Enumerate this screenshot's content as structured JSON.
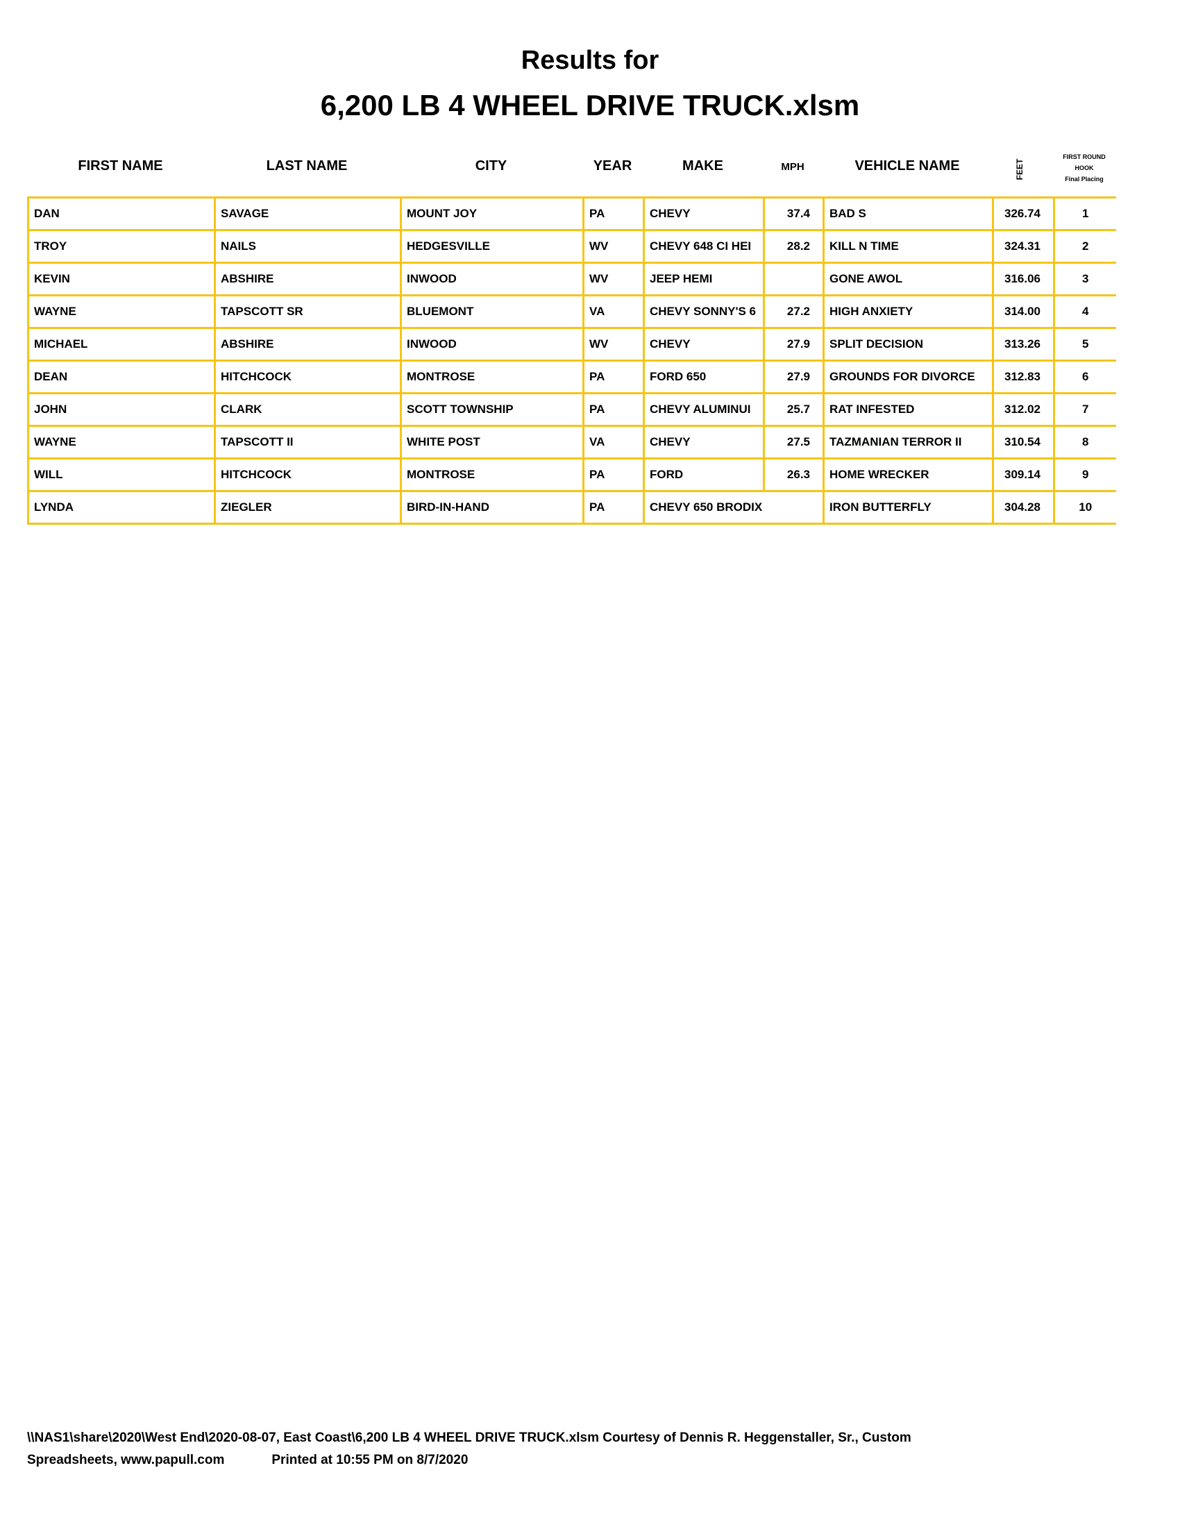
{
  "title": {
    "line1": "Results for",
    "line2": "6,200 LB 4 WHEEL DRIVE TRUCK.xlsm"
  },
  "headers": {
    "first": "FIRST NAME",
    "last": "LAST NAME",
    "city": "CITY",
    "year": "YEAR",
    "make": "MAKE",
    "mph": "MPH",
    "vehicle": "VEHICLE NAME",
    "feet": "FEET",
    "hook1": "FIRST ROUND",
    "hook2": "HOOK",
    "hook3": "Final Placing"
  },
  "border_color": "#f5c518",
  "rows": [
    [
      "DAN",
      "SAVAGE",
      "MOUNT JOY",
      "PA",
      "CHEVY",
      "37.4",
      "BAD S",
      "326.74",
      "1"
    ],
    [
      "TROY",
      "NAILS",
      "HEDGESVILLE",
      "WV",
      "CHEVY 648 CI HEI",
      "28.2",
      "KILL N TIME",
      "324.31",
      "2"
    ],
    [
      "KEVIN",
      "ABSHIRE",
      "INWOOD",
      "WV",
      "JEEP HEMI",
      "",
      "GONE AWOL",
      "316.06",
      "3"
    ],
    [
      "WAYNE",
      "TAPSCOTT SR",
      "BLUEMONT",
      "VA",
      "CHEVY SONNY'S 6",
      "27.2",
      "HIGH ANXIETY",
      "314.00",
      "4"
    ],
    [
      "MICHAEL",
      "ABSHIRE",
      "INWOOD",
      "WV",
      "CHEVY",
      "27.9",
      "SPLIT DECISION",
      "313.26",
      "5"
    ],
    [
      "DEAN",
      "HITCHCOCK",
      "MONTROSE",
      "PA",
      "FORD 650",
      "27.9",
      "GROUNDS FOR DIVORCE",
      "312.83",
      "6"
    ],
    [
      "JOHN",
      "CLARK",
      "SCOTT TOWNSHIP",
      "PA",
      "CHEVY ALUMINUI",
      "25.7",
      "RAT INFESTED",
      "312.02",
      "7"
    ],
    [
      "WAYNE",
      "TAPSCOTT II",
      "WHITE POST",
      "VA",
      "CHEVY",
      "27.5",
      "TAZMANIAN TERROR II",
      "310.54",
      "8"
    ],
    [
      "WILL",
      "HITCHCOCK",
      "MONTROSE",
      "PA",
      "FORD",
      "26.3",
      "HOME WRECKER",
      "309.14",
      "9"
    ],
    [
      "LYNDA",
      "ZIEGLER",
      "BIRD-IN-HAND",
      "PA",
      "CHEVY 650 BRODIX",
      "",
      "IRON BUTTERFLY",
      "304.28",
      "10"
    ]
  ],
  "footer": {
    "line1": "\\\\NAS1\\share\\2020\\West End\\2020-08-07, East Coast\\6,200 LB 4 WHEEL DRIVE TRUCK.xlsm  Courtesy of Dennis R. Heggenstaller, Sr., Custom",
    "line2a": "Spreadsheets, www.papull.com",
    "line2b": "Printed at 10:55 PM on 8/7/2020"
  }
}
